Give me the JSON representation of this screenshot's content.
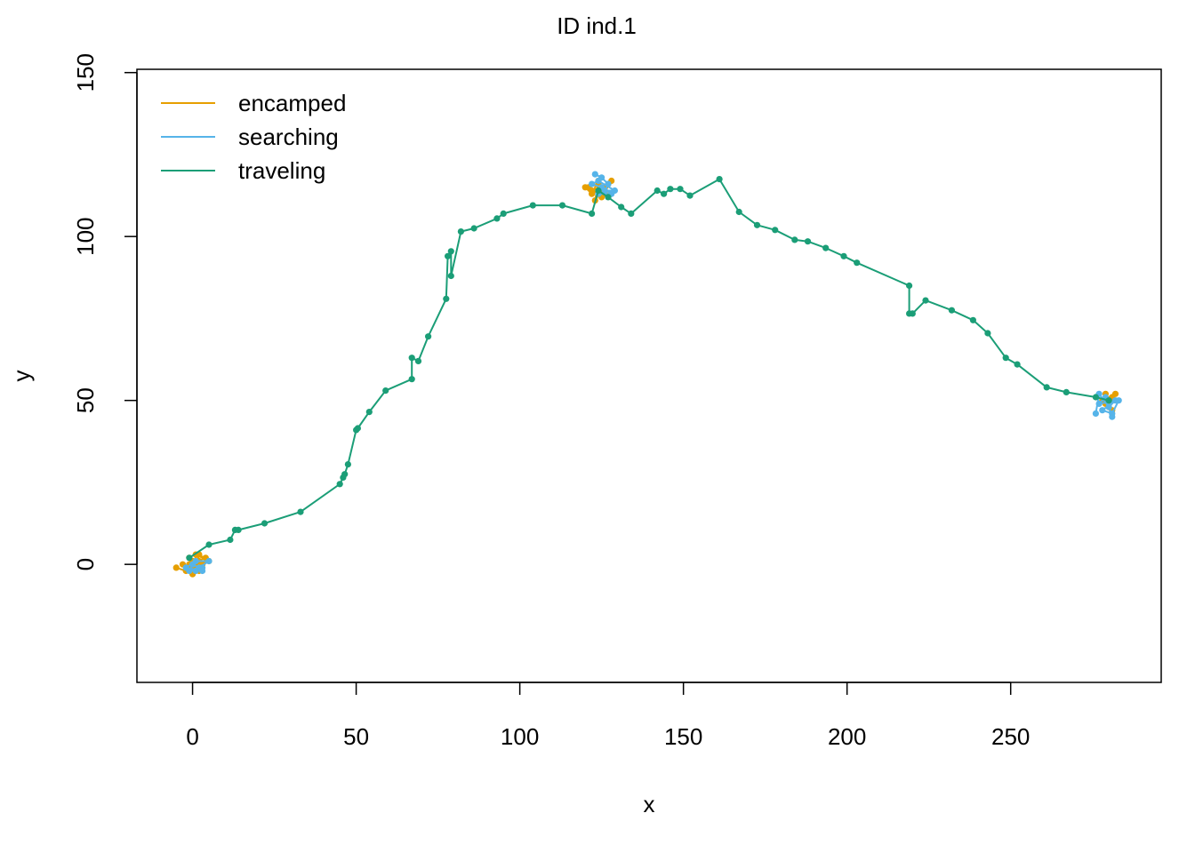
{
  "chart_data": {
    "type": "line",
    "title": "ID ind.1",
    "xlabel": "x",
    "ylabel": "y",
    "xlim": [
      -17,
      296
    ],
    "ylim": [
      -36,
      151
    ],
    "xticks": [
      0,
      50,
      100,
      150,
      200,
      250
    ],
    "yticks": [
      0,
      50,
      100,
      150
    ],
    "grid": false,
    "legend_position": "top-left",
    "series": [
      {
        "name": "encamped",
        "color": "#E69F00",
        "segments": [
          [
            [
              -5,
              -1
            ],
            [
              -2,
              -2
            ],
            [
              0,
              1
            ],
            [
              2,
              3
            ],
            [
              1,
              -1
            ],
            [
              -1,
              2
            ],
            [
              3,
              0
            ],
            [
              0,
              -3
            ],
            [
              2,
              1
            ],
            [
              -1,
              0
            ],
            [
              4,
              2
            ],
            [
              1,
              3
            ],
            [
              5,
              1
            ],
            [
              0,
              -1
            ],
            [
              2,
              -2
            ],
            [
              -3,
              0
            ]
          ],
          [
            [
              120,
              115
            ],
            [
              122,
              113
            ],
            [
              124,
              117
            ],
            [
              123,
              111
            ],
            [
              125,
              114
            ],
            [
              127,
              116
            ],
            [
              122,
              114
            ],
            [
              126,
              113
            ],
            [
              124,
              116
            ],
            [
              121,
              115
            ],
            [
              125,
              112
            ],
            [
              128,
              117
            ]
          ],
          [
            [
              279,
              49
            ],
            [
              281,
              51
            ],
            [
              280,
              48
            ],
            [
              282,
              52
            ],
            [
              278,
              50
            ],
            [
              281,
              47
            ],
            [
              279,
              52
            ],
            [
              280,
              50
            ]
          ]
        ]
      },
      {
        "name": "searching",
        "color": "#56B4E9",
        "segments": [
          [
            [
              1,
              -2
            ],
            [
              3,
              -1
            ],
            [
              -1,
              -2
            ],
            [
              0,
              0
            ],
            [
              2,
              -1
            ],
            [
              5,
              1
            ],
            [
              1,
              1
            ],
            [
              -2,
              -1
            ],
            [
              3,
              -2
            ]
          ],
          [
            [
              123,
              119
            ],
            [
              125,
              118
            ],
            [
              127,
              116
            ],
            [
              126,
              114
            ],
            [
              129,
              114
            ],
            [
              124,
              117
            ],
            [
              122,
              116
            ],
            [
              125,
              115
            ],
            [
              128,
              113
            ],
            [
              124,
              113
            ]
          ],
          [
            [
              276,
              46
            ],
            [
              277,
              52
            ],
            [
              280,
              48
            ],
            [
              282,
              50
            ],
            [
              278,
              47
            ],
            [
              281,
              46
            ],
            [
              283,
              50
            ],
            [
              277,
              49
            ],
            [
              279,
              51
            ],
            [
              281,
              45
            ]
          ]
        ]
      },
      {
        "name": "traveling",
        "color": "#1B9E77",
        "segments": [
          [
            [
              -1,
              2
            ],
            [
              5,
              6
            ],
            [
              11.5,
              7.5
            ],
            [
              13,
              10.5
            ],
            [
              14,
              10.5
            ],
            [
              22,
              12.5
            ],
            [
              33,
              16
            ],
            [
              45,
              24.5
            ],
            [
              46,
              26.5
            ],
            [
              46.5,
              27.5
            ],
            [
              47.5,
              30.5
            ],
            [
              50,
              41
            ],
            [
              50.5,
              41.5
            ],
            [
              54,
              46.5
            ],
            [
              59,
              53
            ],
            [
              67,
              56.5
            ],
            [
              67,
              63
            ],
            [
              69,
              62
            ],
            [
              72,
              69.5
            ],
            [
              77.5,
              81
            ],
            [
              78,
              94
            ],
            [
              79,
              95.5
            ],
            [
              79,
              88
            ],
            [
              82,
              101.5
            ],
            [
              86,
              102.5
            ],
            [
              93,
              105.5
            ],
            [
              95,
              107
            ],
            [
              104,
              109.5
            ],
            [
              113,
              109.5
            ],
            [
              122,
              107
            ],
            [
              124,
              114
            ],
            [
              127,
              112
            ],
            [
              131,
              109
            ],
            [
              134,
              107
            ],
            [
              142,
              114
            ],
            [
              144,
              113
            ],
            [
              146,
              114.5
            ],
            [
              149,
              114.5
            ],
            [
              152,
              112.5
            ],
            [
              161,
              117.5
            ],
            [
              167,
              107.5
            ],
            [
              172.5,
              103.5
            ],
            [
              178,
              102
            ],
            [
              184,
              99
            ],
            [
              188,
              98.5
            ],
            [
              193.5,
              96.5
            ],
            [
              199,
              94
            ],
            [
              203,
              92
            ],
            [
              219,
              85
            ],
            [
              219,
              76.5
            ],
            [
              220,
              76.5
            ],
            [
              224,
              80.5
            ],
            [
              232,
              77.5
            ],
            [
              238.5,
              74.5
            ],
            [
              243,
              70.5
            ],
            [
              248.5,
              63
            ],
            [
              252,
              61
            ],
            [
              261,
              54
            ],
            [
              267,
              52.5
            ],
            [
              276,
              51
            ],
            [
              280,
              50
            ]
          ]
        ]
      }
    ]
  }
}
